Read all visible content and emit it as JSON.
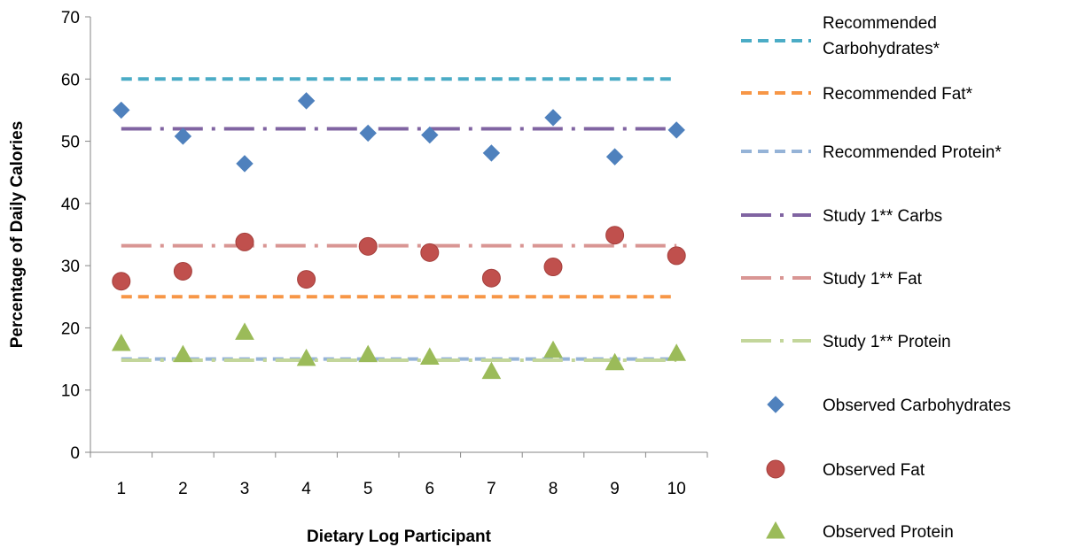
{
  "chart_data": {
    "type": "scatter",
    "title": "",
    "xlabel": "Dietary Log Participant",
    "ylabel": "Percentage of Daily Calories",
    "categories": [
      "1",
      "2",
      "3",
      "4",
      "5",
      "6",
      "7",
      "8",
      "9",
      "10"
    ],
    "ylim": [
      0,
      70
    ],
    "yticks": [
      "0",
      "10",
      "20",
      "30",
      "40",
      "50",
      "60",
      "70"
    ],
    "grid": false,
    "legend_position": "right",
    "series": [
      {
        "name": "Recommended Carbohydrates*",
        "kind": "line",
        "dash": "dash",
        "color": "#4BACC6",
        "values": [
          60,
          60,
          60,
          60,
          60,
          60,
          60,
          60,
          60,
          60
        ]
      },
      {
        "name": "Recommended Fat*",
        "kind": "line",
        "dash": "dash",
        "color": "#F79646",
        "values": [
          25,
          25,
          25,
          25,
          25,
          25,
          25,
          25,
          25,
          25
        ]
      },
      {
        "name": "Recommended Protein*",
        "kind": "line",
        "dash": "dash",
        "color": "#95B3D7",
        "values": [
          15,
          15,
          15,
          15,
          15,
          15,
          15,
          15,
          15,
          15
        ]
      },
      {
        "name": "Study 1** Carbs",
        "kind": "line",
        "dash": "dashdot",
        "color": "#8064A2",
        "values": [
          52,
          52,
          52,
          52,
          52,
          52,
          52,
          52,
          52,
          52
        ]
      },
      {
        "name": "Study 1** Fat",
        "kind": "line",
        "dash": "dashdot",
        "color": "#D99694",
        "values": [
          33.2,
          33.2,
          33.2,
          33.2,
          33.2,
          33.2,
          33.2,
          33.2,
          33.2,
          33.2
        ]
      },
      {
        "name": "Study 1** Protein",
        "kind": "line",
        "dash": "dashdot",
        "color": "#C3D69B",
        "values": [
          14.8,
          14.8,
          14.8,
          14.8,
          14.8,
          14.8,
          14.8,
          14.8,
          14.8,
          14.8
        ]
      },
      {
        "name": "Observed Carbohydrates",
        "kind": "marker",
        "marker": "diamond",
        "color": "#4F81BD",
        "values": [
          55,
          50.8,
          46.4,
          56.5,
          51.3,
          51,
          48.1,
          53.8,
          47.5,
          51.8
        ]
      },
      {
        "name": "Observed Fat",
        "kind": "marker",
        "marker": "circle",
        "color": "#C0504D",
        "values": [
          27.5,
          29.1,
          33.8,
          27.8,
          33.1,
          32.1,
          28,
          29.8,
          34.9,
          31.6
        ]
      },
      {
        "name": "Observed Protein",
        "kind": "marker",
        "marker": "triangle",
        "color": "#9BBB59",
        "values": [
          17.5,
          15.7,
          19.3,
          15.1,
          15.7,
          15.3,
          13,
          16.4,
          14.4,
          15.9
        ]
      }
    ]
  }
}
